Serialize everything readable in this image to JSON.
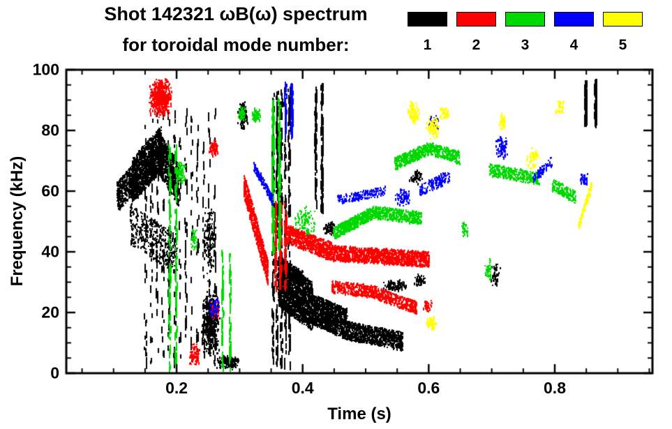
{
  "header": {
    "title_line1": "Shot 142321 ωB(ω) spectrum",
    "title_line2": "for toroidal mode number:"
  },
  "legend": {
    "labels": [
      "1",
      "2",
      "3",
      "4",
      "5"
    ],
    "colors": [
      "#000000",
      "#ff0000",
      "#00d900",
      "#0000ff",
      "#ffff00"
    ]
  },
  "chart_data": {
    "type": "scatter",
    "title": "Shot 142321 ωB(ω) spectrum for toroidal mode number",
    "xlabel": "Time (s)",
    "ylabel": "Frequency (kHz)",
    "xlim": [
      0.025,
      0.955
    ],
    "ylim": [
      0,
      100
    ],
    "xticks": [
      0.2,
      0.4,
      0.6,
      0.8
    ],
    "xtick_labels": [
      "0.2",
      "0.4",
      "0.6",
      "0.8"
    ],
    "yticks": [
      0,
      20,
      40,
      60,
      80,
      100
    ],
    "ytick_labels": [
      "0",
      "20",
      "40",
      "60",
      "80",
      "100"
    ],
    "x_minor_step": 0.05,
    "y_minor_step": 5,
    "grid": false,
    "legend_position": "top-right",
    "series": [
      {
        "name": "1",
        "color": "#000000",
        "clusters": [
          {
            "s": "band",
            "t": [
              0.105,
              0.135
            ],
            "f": [
              58,
              65
            ],
            "j": 10,
            "n": 450
          },
          {
            "s": "band",
            "t": [
              0.128,
              0.175
            ],
            "f": [
              63,
              74
            ],
            "j": 15,
            "n": 1300
          },
          {
            "s": "band",
            "t": [
              0.17,
              0.202
            ],
            "f": [
              73,
              62
            ],
            "j": 14,
            "n": 800
          },
          {
            "s": "band",
            "t": [
              0.125,
              0.2
            ],
            "f": [
              49,
              39
            ],
            "j": 13,
            "n": 420
          },
          {
            "s": "streak",
            "t": [
              0.15,
              0.26
            ],
            "f": [
              2,
              86
            ],
            "c": 13,
            "n": 330
          },
          {
            "s": "blob",
            "t": [
              0.238,
              0.268
            ],
            "f": [
              5,
              28
            ],
            "n": 520
          },
          {
            "s": "blob",
            "t": [
              0.242,
              0.262
            ],
            "f": [
              30,
              56
            ],
            "n": 130
          },
          {
            "s": "blob",
            "t": [
              0.262,
              0.3
            ],
            "f": [
              1,
              6
            ],
            "n": 140
          },
          {
            "s": "blob",
            "t": [
              0.296,
              0.312
            ],
            "f": [
              80,
              90
            ],
            "n": 80
          },
          {
            "s": "streak",
            "t": [
              0.352,
              0.378
            ],
            "f": [
              2,
              95
            ],
            "c": 5,
            "n": 430
          },
          {
            "s": "band",
            "t": [
              0.36,
              0.415
            ],
            "f": [
              30,
              22
            ],
            "j": 16,
            "n": 1800
          },
          {
            "s": "band",
            "t": [
              0.362,
              0.4
            ],
            "f": [
              36,
              31
            ],
            "j": 5,
            "n": 250
          },
          {
            "s": "band",
            "t": [
              0.415,
              0.47
            ],
            "f": [
              21,
              16
            ],
            "j": 10,
            "n": 1100
          },
          {
            "s": "band",
            "t": [
              0.47,
              0.558
            ],
            "f": [
              14,
              10.5
            ],
            "j": 6,
            "n": 800
          },
          {
            "s": "streak",
            "t": [
              0.42,
              0.43
            ],
            "f": [
              52,
              95
            ],
            "c": 2,
            "n": 130
          },
          {
            "s": "blob",
            "t": [
              0.432,
              0.452
            ],
            "f": [
              45,
              50
            ],
            "n": 60
          },
          {
            "s": "blob",
            "t": [
              0.525,
              0.568
            ],
            "f": [
              27,
              31
            ],
            "n": 110
          },
          {
            "s": "blob",
            "t": [
              0.568,
              0.59
            ],
            "f": [
              62,
              67
            ],
            "n": 60
          },
          {
            "s": "blob",
            "t": [
              0.576,
              0.594
            ],
            "f": [
              28,
              33
            ],
            "n": 50
          },
          {
            "s": "blob",
            "t": [
              0.695,
              0.714
            ],
            "f": [
              28,
              36
            ],
            "n": 45
          },
          {
            "s": "streak",
            "t": [
              0.848,
              0.864
            ],
            "f": [
              82,
              96
            ],
            "c": 2,
            "n": 150
          }
        ]
      },
      {
        "name": "2",
        "color": "#ff0000",
        "clusters": [
          {
            "s": "blob",
            "t": [
              0.155,
              0.192
            ],
            "f": [
              84,
              97
            ],
            "n": 600
          },
          {
            "s": "blob",
            "t": [
              0.218,
              0.236
            ],
            "f": [
              2,
              10
            ],
            "n": 90
          },
          {
            "s": "blob",
            "t": [
              0.25,
              0.266
            ],
            "f": [
              71,
              77
            ],
            "n": 70
          },
          {
            "s": "blob",
            "t": [
              0.252,
              0.268
            ],
            "f": [
              17,
              24
            ],
            "n": 50
          },
          {
            "s": "band",
            "t": [
              0.306,
              0.344
            ],
            "f": [
              62,
              33
            ],
            "j": 8,
            "n": 600
          },
          {
            "s": "streak",
            "t": [
              0.356,
              0.372
            ],
            "f": [
              28,
              56
            ],
            "c": 3,
            "n": 160
          },
          {
            "s": "band",
            "t": [
              0.372,
              0.445
            ],
            "f": [
              46,
              40
            ],
            "j": 6,
            "n": 700
          },
          {
            "s": "band",
            "t": [
              0.445,
              0.6
            ],
            "f": [
              39.5,
              37.5
            ],
            "j": 5,
            "n": 1300
          },
          {
            "s": "band",
            "t": [
              0.445,
              0.52
            ],
            "f": [
              28.5,
              26.5
            ],
            "j": 4,
            "n": 380
          },
          {
            "s": "band",
            "t": [
              0.52,
              0.58
            ],
            "f": [
              26,
              21.5
            ],
            "j": 4,
            "n": 330
          },
          {
            "s": "blob",
            "t": [
              0.59,
              0.605
            ],
            "f": [
              20,
              24
            ],
            "n": 40
          }
        ]
      },
      {
        "name": "3",
        "color": "#00d900",
        "clusters": [
          {
            "s": "streak",
            "t": [
              0.188,
              0.198
            ],
            "f": [
              1,
              75
            ],
            "c": 2,
            "n": 150
          },
          {
            "s": "blob",
            "t": [
              0.198,
              0.214
            ],
            "f": [
              62,
              70
            ],
            "n": 80
          },
          {
            "s": "blob",
            "t": [
              0.22,
              0.234
            ],
            "f": [
              40,
              48
            ],
            "n": 45
          },
          {
            "s": "streak",
            "t": [
              0.272,
              0.284
            ],
            "f": [
              1,
              40
            ],
            "c": 2,
            "n": 80
          },
          {
            "s": "blob",
            "t": [
              0.296,
              0.31
            ],
            "f": [
              83,
              88
            ],
            "n": 55
          },
          {
            "s": "blob",
            "t": [
              0.318,
              0.332
            ],
            "f": [
              82,
              88
            ],
            "n": 60
          },
          {
            "s": "streak",
            "t": [
              0.352,
              0.362
            ],
            "f": [
              40,
              90
            ],
            "c": 2,
            "n": 240
          },
          {
            "s": "blob",
            "t": [
              0.385,
              0.42
            ],
            "f": [
              45,
              55
            ],
            "n": 90
          },
          {
            "s": "band",
            "t": [
              0.448,
              0.512
            ],
            "f": [
              46,
              53
            ],
            "j": 4,
            "n": 520
          },
          {
            "s": "band",
            "t": [
              0.512,
              0.588
            ],
            "f": [
              53,
              51
            ],
            "j": 4,
            "n": 430
          },
          {
            "s": "band",
            "t": [
              0.545,
              0.6
            ],
            "f": [
              69,
              74
            ],
            "j": 4,
            "n": 340
          },
          {
            "s": "band",
            "t": [
              0.6,
              0.648
            ],
            "f": [
              74,
              71
            ],
            "j": 4,
            "n": 260
          },
          {
            "s": "band",
            "t": [
              0.695,
              0.775
            ],
            "f": [
              67,
              64
            ],
            "j": 4,
            "n": 300
          },
          {
            "s": "band",
            "t": [
              0.795,
              0.832
            ],
            "f": [
              62,
              58
            ],
            "j": 4,
            "n": 150
          },
          {
            "s": "blob",
            "t": [
              0.688,
              0.7
            ],
            "f": [
              30,
              38
            ],
            "n": 40
          },
          {
            "s": "blob",
            "t": [
              0.65,
              0.662
            ],
            "f": [
              44,
              50
            ],
            "n": 30
          }
        ]
      },
      {
        "name": "4",
        "color": "#0000ff",
        "clusters": [
          {
            "s": "band",
            "t": [
              0.322,
              0.352
            ],
            "f": [
              68,
              57
            ],
            "j": 3,
            "n": 170
          },
          {
            "s": "streak",
            "t": [
              0.372,
              0.382
            ],
            "f": [
              78,
              95
            ],
            "c": 2,
            "n": 110
          },
          {
            "s": "blob",
            "t": [
              0.25,
              0.268
            ],
            "f": [
              18,
              25
            ],
            "n": 50
          },
          {
            "s": "band",
            "t": [
              0.455,
              0.53
            ],
            "f": [
              57,
              60
            ],
            "j": 3,
            "n": 170
          },
          {
            "s": "blob",
            "t": [
              0.545,
              0.57
            ],
            "f": [
              55,
              61
            ],
            "n": 70
          },
          {
            "s": "band",
            "t": [
              0.585,
              0.632
            ],
            "f": [
              60,
              65
            ],
            "j": 4,
            "n": 130
          },
          {
            "s": "blob",
            "t": [
              0.598,
              0.615
            ],
            "f": [
              80,
              85
            ],
            "n": 50
          },
          {
            "s": "blob",
            "t": [
              0.705,
              0.726
            ],
            "f": [
              70,
              78
            ],
            "n": 90
          },
          {
            "s": "band",
            "t": [
              0.765,
              0.795
            ],
            "f": [
              64,
              70
            ],
            "j": 3,
            "n": 80
          },
          {
            "s": "blob",
            "t": [
              0.838,
              0.854
            ],
            "f": [
              62,
              66
            ],
            "n": 40
          }
        ]
      },
      {
        "name": "5",
        "color": "#ffff00",
        "clusters": [
          {
            "s": "blob",
            "t": [
              0.565,
              0.585
            ],
            "f": [
              82,
              90
            ],
            "n": 90
          },
          {
            "s": "blob",
            "t": [
              0.595,
              0.618
            ],
            "f": [
              77,
              85
            ],
            "n": 80
          },
          {
            "s": "blob",
            "t": [
              0.616,
              0.632
            ],
            "f": [
              83,
              88
            ],
            "n": 45
          },
          {
            "s": "blob",
            "t": [
              0.595,
              0.612
            ],
            "f": [
              14,
              19
            ],
            "n": 60
          },
          {
            "s": "blob",
            "t": [
              0.71,
              0.722
            ],
            "f": [
              80,
              86
            ],
            "n": 40
          },
          {
            "s": "blob",
            "t": [
              0.752,
              0.775
            ],
            "f": [
              67,
              75
            ],
            "n": 60
          },
          {
            "s": "band",
            "t": [
              0.836,
              0.858
            ],
            "f": [
              48,
              62
            ],
            "j": 3,
            "n": 90
          },
          {
            "s": "blob",
            "t": [
              0.8,
              0.814
            ],
            "f": [
              85,
              90
            ],
            "n": 30
          }
        ]
      }
    ]
  }
}
